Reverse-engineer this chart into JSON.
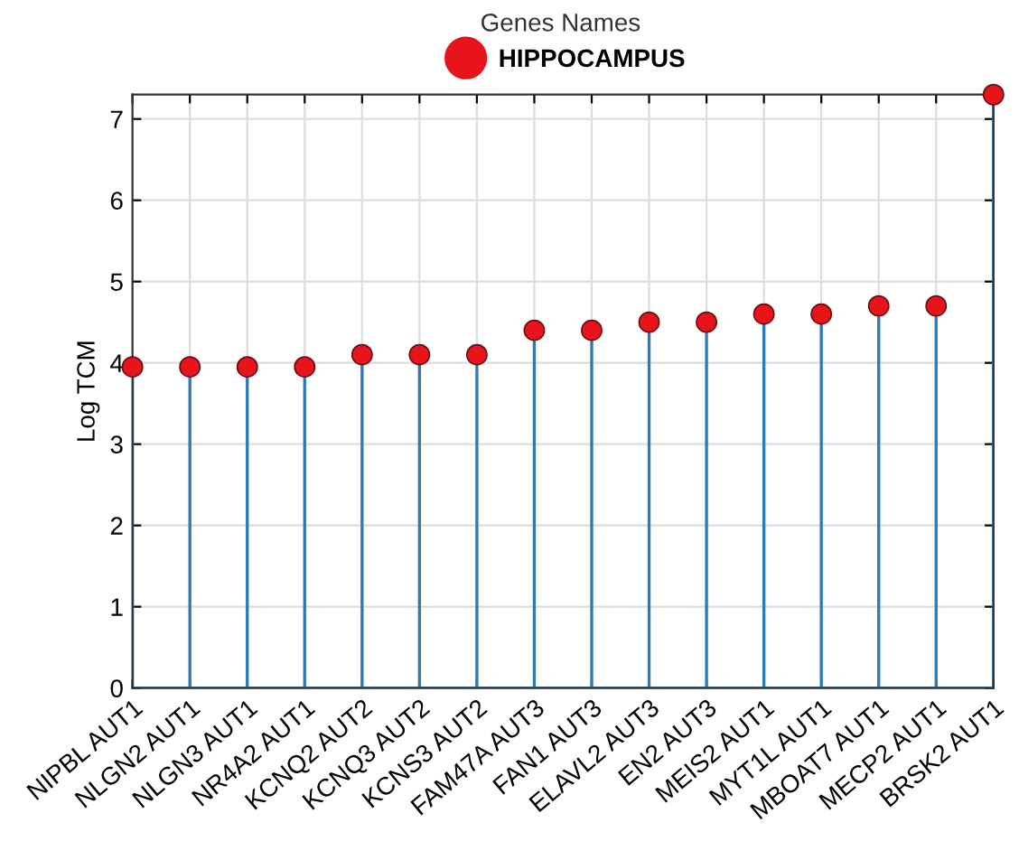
{
  "chart_data": {
    "type": "lollipop",
    "xlabel": "Genes Names",
    "ylabel": "Log TCM",
    "categories": [
      "NIPBL AUT1",
      "NLGN2 AUT1",
      "NLGN3 AUT1",
      "NR4A2 AUT1",
      "KCNQ2 AUT2",
      "KCNQ3 AUT2",
      "KCNS3 AUT2",
      "FAM47A AUT3",
      "FAN1 AUT3",
      "ELAVL2 AUT3",
      "EN2 AUT3",
      "MEIS2 AUT1",
      "MYT1L AUT1",
      "MBOAT7 AUT1",
      "MECP2 AUT1",
      "BRSK2 AUT1"
    ],
    "series": [
      {
        "name": "HIPPOCAMPUS",
        "color": "#e8141c",
        "values": [
          3.95,
          3.95,
          3.95,
          3.95,
          4.1,
          4.1,
          4.1,
          4.4,
          4.4,
          4.5,
          4.5,
          4.6,
          4.6,
          4.7,
          4.7,
          7.3
        ]
      }
    ],
    "ylim": [
      0,
      7.3
    ],
    "yticks": [
      0,
      1,
      2,
      3,
      4,
      5,
      6,
      7
    ],
    "grid": true,
    "legend": "top",
    "marker": "circle"
  }
}
